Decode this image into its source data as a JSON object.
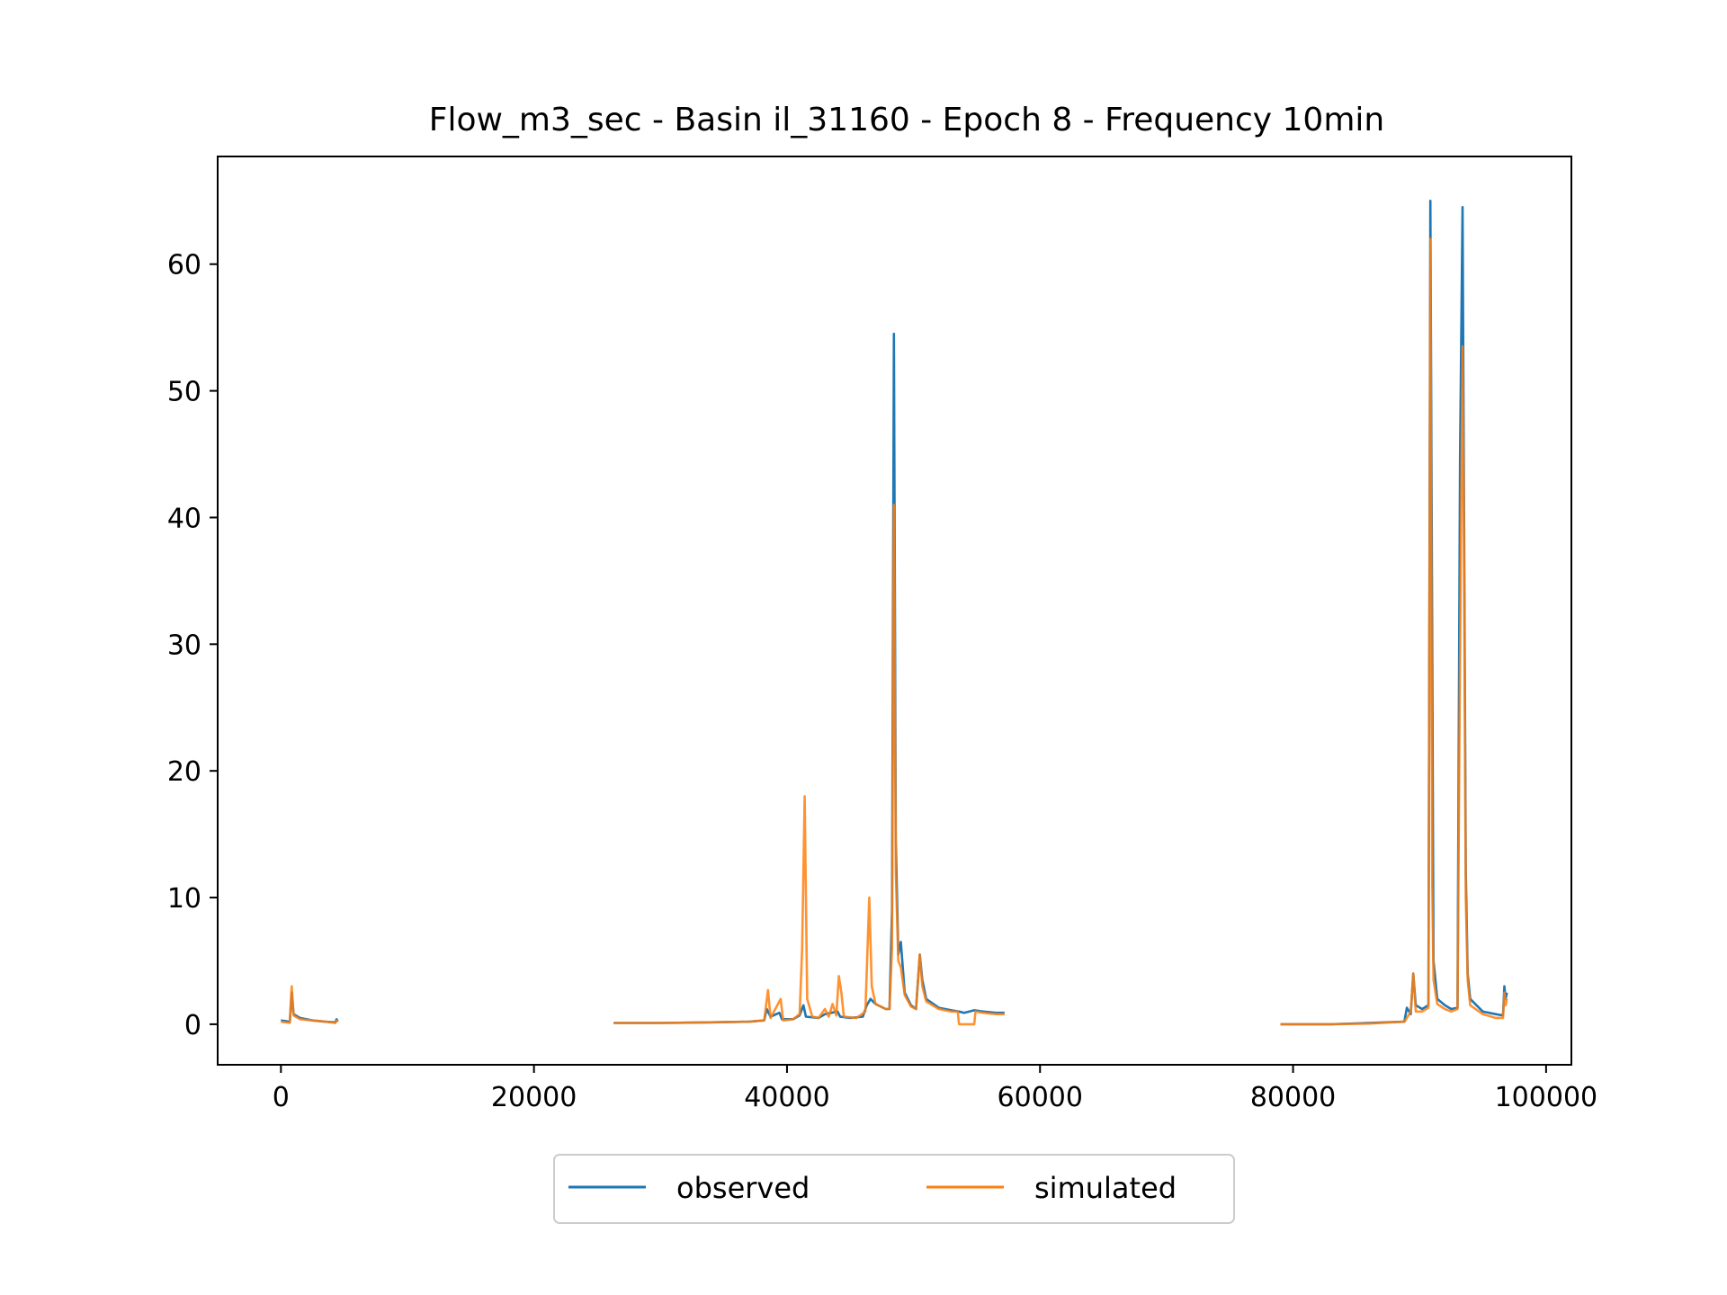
{
  "chart_data": {
    "type": "line",
    "title": "Flow_m3_sec - Basin il_31160 - Epoch 8 - Frequency 10min",
    "xlabel": "",
    "ylabel": "",
    "xlim": [
      -5000,
      102000
    ],
    "ylim": [
      -3.2,
      68.5
    ],
    "xticks": [
      0,
      20000,
      40000,
      60000,
      80000,
      100000
    ],
    "yticks": [
      0,
      10,
      20,
      30,
      40,
      50,
      60
    ],
    "grid": false,
    "legend": {
      "position": "bottom-center",
      "columns": 2
    },
    "series": [
      {
        "name": "observed",
        "color": "#1f77b4",
        "segments": [
          [
            [
              0,
              0.3
            ],
            [
              700,
              0.2
            ],
            [
              850,
              2.5
            ],
            [
              1000,
              0.8
            ],
            [
              1500,
              0.5
            ],
            [
              2500,
              0.3
            ],
            [
              3500,
              0.2
            ],
            [
              4300,
              0.15
            ],
            [
              4400,
              0.4
            ],
            [
              4500,
              0.2
            ]
          ],
          [
            [
              26300,
              0.1
            ],
            [
              30000,
              0.1
            ],
            [
              34000,
              0.15
            ],
            [
              37000,
              0.2
            ],
            [
              38200,
              0.3
            ],
            [
              38400,
              1.2
            ],
            [
              38700,
              0.6
            ],
            [
              39400,
              0.9
            ],
            [
              39600,
              0.4
            ],
            [
              40500,
              0.4
            ],
            [
              41000,
              0.7
            ],
            [
              41300,
              1.5
            ],
            [
              41500,
              0.6
            ],
            [
              42500,
              0.5
            ],
            [
              43000,
              0.8
            ],
            [
              43500,
              0.9
            ],
            [
              44000,
              1.0
            ],
            [
              44200,
              0.6
            ],
            [
              45000,
              0.5
            ],
            [
              46000,
              0.6
            ],
            [
              46300,
              1.5
            ],
            [
              46600,
              2.0
            ],
            [
              47000,
              1.6
            ],
            [
              47800,
              1.2
            ],
            [
              48100,
              1.2
            ],
            [
              48300,
              9.0
            ],
            [
              48450,
              54.5
            ],
            [
              48600,
              14.5
            ],
            [
              48800,
              5.5
            ],
            [
              49000,
              6.5
            ],
            [
              49300,
              2.5
            ],
            [
              49800,
              1.5
            ],
            [
              50200,
              1.2
            ],
            [
              50500,
              5.5
            ],
            [
              50700,
              3.5
            ],
            [
              51000,
              2.0
            ],
            [
              52000,
              1.3
            ],
            [
              53000,
              1.1
            ],
            [
              53600,
              1.0
            ],
            [
              54000,
              0.9
            ],
            [
              54800,
              1.1
            ],
            [
              55500,
              1.0
            ],
            [
              56500,
              0.9
            ],
            [
              57200,
              0.9
            ]
          ],
          [
            [
              79000,
              0.0
            ],
            [
              83000,
              0.0
            ],
            [
              86000,
              0.1
            ],
            [
              88800,
              0.2
            ],
            [
              89000,
              1.3
            ],
            [
              89300,
              0.8
            ],
            [
              89500,
              4.0
            ],
            [
              89700,
              1.5
            ],
            [
              90200,
              1.2
            ],
            [
              90700,
              1.5
            ],
            [
              90850,
              65.0
            ],
            [
              91000,
              29.5
            ],
            [
              91100,
              5.0
            ],
            [
              91400,
              2.0
            ],
            [
              92000,
              1.5
            ],
            [
              92500,
              1.2
            ],
            [
              93000,
              1.3
            ],
            [
              93200,
              44.5
            ],
            [
              93400,
              64.5
            ],
            [
              93500,
              44.0
            ],
            [
              93650,
              12.0
            ],
            [
              93800,
              4.0
            ],
            [
              94000,
              2.0
            ],
            [
              95000,
              1.0
            ],
            [
              96000,
              0.8
            ],
            [
              96600,
              0.7
            ],
            [
              96700,
              3.0
            ],
            [
              96800,
              2.0
            ],
            [
              96900,
              2.5
            ]
          ]
        ]
      },
      {
        "name": "simulated",
        "color": "#ff7f0e",
        "segments": [
          [
            [
              0,
              0.2
            ],
            [
              700,
              0.1
            ],
            [
              850,
              3.0
            ],
            [
              1000,
              0.7
            ],
            [
              1500,
              0.4
            ],
            [
              2500,
              0.3
            ],
            [
              3500,
              0.2
            ],
            [
              4300,
              0.1
            ],
            [
              4400,
              0.3
            ],
            [
              4500,
              0.2
            ]
          ],
          [
            [
              26300,
              0.1
            ],
            [
              30000,
              0.1
            ],
            [
              34000,
              0.15
            ],
            [
              37000,
              0.2
            ],
            [
              38200,
              0.3
            ],
            [
              38500,
              2.7
            ],
            [
              38700,
              0.5
            ],
            [
              39500,
              2.0
            ],
            [
              39700,
              0.3
            ],
            [
              40500,
              0.4
            ],
            [
              41000,
              0.8
            ],
            [
              41200,
              6.0
            ],
            [
              41400,
              18.0
            ],
            [
              41600,
              2.0
            ],
            [
              42000,
              0.6
            ],
            [
              42500,
              0.5
            ],
            [
              43000,
              1.2
            ],
            [
              43300,
              0.6
            ],
            [
              43600,
              1.6
            ],
            [
              43900,
              0.7
            ],
            [
              44100,
              3.8
            ],
            [
              44300,
              2.5
            ],
            [
              44500,
              0.6
            ],
            [
              45500,
              0.5
            ],
            [
              46200,
              1.0
            ],
            [
              46500,
              10.0
            ],
            [
              46700,
              3.0
            ],
            [
              47000,
              1.6
            ],
            [
              47800,
              1.2
            ],
            [
              48100,
              1.2
            ],
            [
              48300,
              6.0
            ],
            [
              48450,
              41.0
            ],
            [
              48600,
              12.0
            ],
            [
              48800,
              5.0
            ],
            [
              49000,
              4.5
            ],
            [
              49300,
              2.3
            ],
            [
              49800,
              1.4
            ],
            [
              50200,
              1.2
            ],
            [
              50500,
              5.5
            ],
            [
              50700,
              3.0
            ],
            [
              51000,
              1.8
            ],
            [
              52000,
              1.2
            ],
            [
              53000,
              1.0
            ],
            [
              53500,
              1.0
            ],
            [
              53600,
              0.0
            ],
            [
              54800,
              0.0
            ],
            [
              54900,
              1.0
            ],
            [
              55500,
              0.9
            ],
            [
              56500,
              0.8
            ],
            [
              57200,
              0.8
            ]
          ],
          [
            [
              79000,
              0.0
            ],
            [
              83000,
              0.0
            ],
            [
              86000,
              0.05
            ],
            [
              88800,
              0.2
            ],
            [
              89000,
              0.5
            ],
            [
              89300,
              1.0
            ],
            [
              89500,
              4.0
            ],
            [
              89700,
              1.0
            ],
            [
              90200,
              1.0
            ],
            [
              90700,
              1.3
            ],
            [
              90850,
              62.0
            ],
            [
              91000,
              11.0
            ],
            [
              91100,
              3.5
            ],
            [
              91400,
              1.6
            ],
            [
              92000,
              1.2
            ],
            [
              92500,
              1.0
            ],
            [
              93000,
              1.2
            ],
            [
              93200,
              29.0
            ],
            [
              93400,
              53.5
            ],
            [
              93500,
              40.0
            ],
            [
              93650,
              10.0
            ],
            [
              93800,
              3.5
            ],
            [
              94000,
              1.5
            ],
            [
              95000,
              0.8
            ],
            [
              96000,
              0.5
            ],
            [
              96600,
              0.5
            ],
            [
              96700,
              2.5
            ],
            [
              96800,
              1.5
            ],
            [
              96900,
              2.0
            ]
          ]
        ]
      }
    ]
  }
}
